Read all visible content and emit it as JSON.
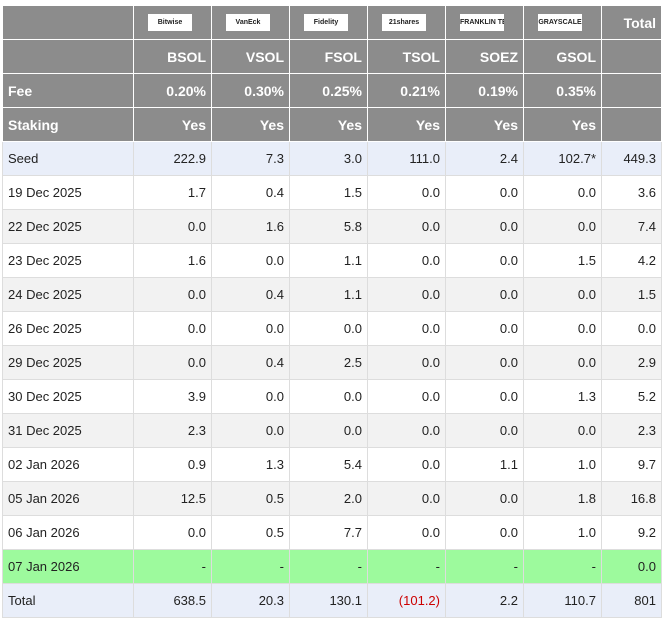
{
  "table": {
    "logos": [
      "Bitwise",
      "VanEck",
      "Fidelity",
      "21shares",
      "FRANKLIN TEMPLETON",
      "GRAYSCALE"
    ],
    "total_label": "Total",
    "tickers": [
      "BSOL",
      "VSOL",
      "FSOL",
      "TSOL",
      "SOEZ",
      "GSOL"
    ],
    "fee": {
      "label": "Fee",
      "values": [
        "0.20%",
        "0.30%",
        "0.25%",
        "0.21%",
        "0.19%",
        "0.35%"
      ]
    },
    "staking": {
      "label": "Staking",
      "values": [
        "Yes",
        "Yes",
        "Yes",
        "Yes",
        "Yes",
        "Yes"
      ]
    },
    "rows": [
      {
        "label": "Seed",
        "values": [
          "222.9",
          "7.3",
          "3.0",
          "111.0",
          "2.4",
          "102.7*",
          "449.3"
        ]
      },
      {
        "label": "19 Dec 2025",
        "values": [
          "1.7",
          "0.4",
          "1.5",
          "0.0",
          "0.0",
          "0.0",
          "3.6"
        ]
      },
      {
        "label": "22 Dec 2025",
        "values": [
          "0.0",
          "1.6",
          "5.8",
          "0.0",
          "0.0",
          "0.0",
          "7.4"
        ]
      },
      {
        "label": "23 Dec 2025",
        "values": [
          "1.6",
          "0.0",
          "1.1",
          "0.0",
          "0.0",
          "1.5",
          "4.2"
        ]
      },
      {
        "label": "24 Dec 2025",
        "values": [
          "0.0",
          "0.4",
          "1.1",
          "0.0",
          "0.0",
          "0.0",
          "1.5"
        ]
      },
      {
        "label": "26 Dec 2025",
        "values": [
          "0.0",
          "0.0",
          "0.0",
          "0.0",
          "0.0",
          "0.0",
          "0.0"
        ]
      },
      {
        "label": "29 Dec 2025",
        "values": [
          "0.0",
          "0.4",
          "2.5",
          "0.0",
          "0.0",
          "0.0",
          "2.9"
        ]
      },
      {
        "label": "30 Dec 2025",
        "values": [
          "3.9",
          "0.0",
          "0.0",
          "0.0",
          "0.0",
          "1.3",
          "5.2"
        ]
      },
      {
        "label": "31 Dec 2025",
        "values": [
          "2.3",
          "0.0",
          "0.0",
          "0.0",
          "0.0",
          "0.0",
          "2.3"
        ]
      },
      {
        "label": "02 Jan 2026",
        "values": [
          "0.9",
          "1.3",
          "5.4",
          "0.0",
          "1.1",
          "1.0",
          "9.7"
        ]
      },
      {
        "label": "05 Jan 2026",
        "values": [
          "12.5",
          "0.5",
          "2.0",
          "0.0",
          "0.0",
          "1.8",
          "16.8"
        ]
      },
      {
        "label": "06 Jan 2026",
        "values": [
          "0.0",
          "0.5",
          "7.7",
          "0.0",
          "0.0",
          "1.0",
          "9.2"
        ]
      },
      {
        "label": "07 Jan 2026",
        "values": [
          "-",
          "-",
          "-",
          "-",
          "-",
          "-",
          "0.0"
        ]
      },
      {
        "label": "Total",
        "values": [
          "638.5",
          "20.3",
          "130.1",
          "(101.2)",
          "2.2",
          "110.7",
          "801"
        ]
      }
    ]
  }
}
